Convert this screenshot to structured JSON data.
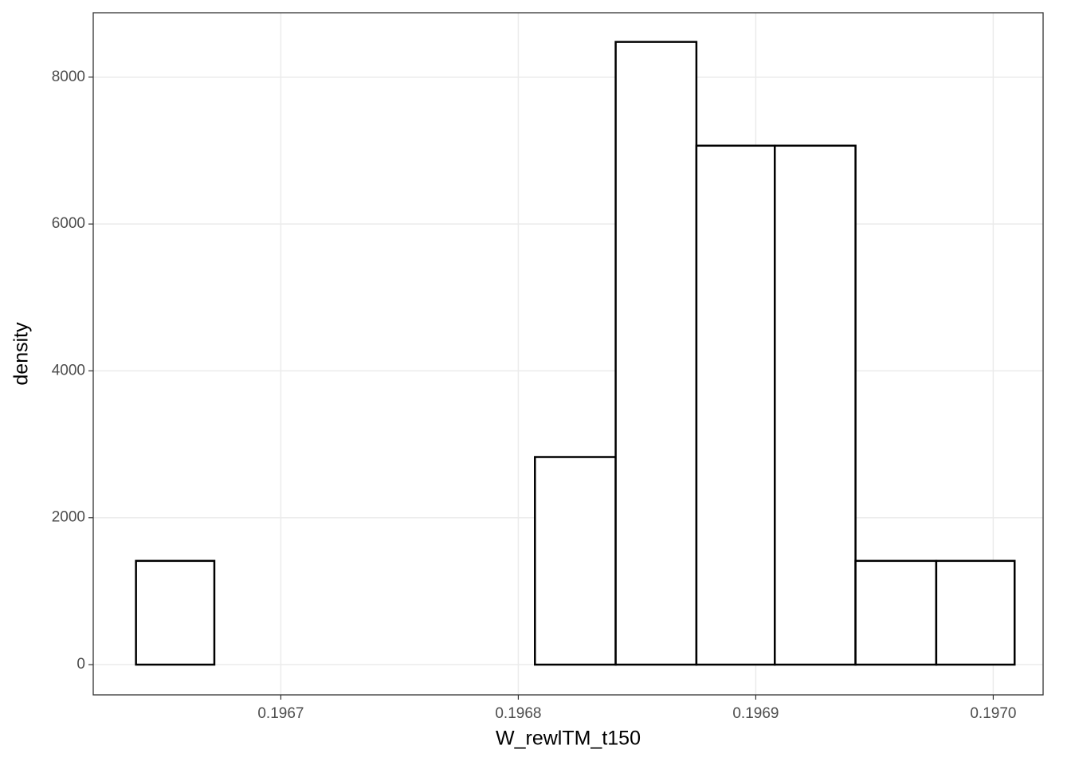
{
  "chart_data": {
    "type": "histogram",
    "x_label": "W_rewlTM_t150",
    "y_label": "density",
    "bins": [
      0.196639,
      0.196672,
      0.196706,
      0.19674,
      0.196774,
      0.196807,
      0.196841,
      0.196875,
      0.196908,
      0.196942,
      0.196976,
      0.197009
    ],
    "values": [
      1413,
      0,
      0,
      0,
      0,
      2827,
      8480,
      7067,
      7067,
      1413,
      1413
    ],
    "color": "#ffffff",
    "edge_color": "#000000",
    "xlim": [
      0.196621,
      0.197021
    ],
    "ylim": [
      -412,
      8877
    ],
    "xticks": [
      0.1967,
      0.1968,
      0.1969,
      {
        "value": 0.197,
        "label": "0.1970"
      }
    ],
    "yticks": [
      0,
      2000,
      4000,
      6000,
      8000
    ],
    "grid": true
  }
}
